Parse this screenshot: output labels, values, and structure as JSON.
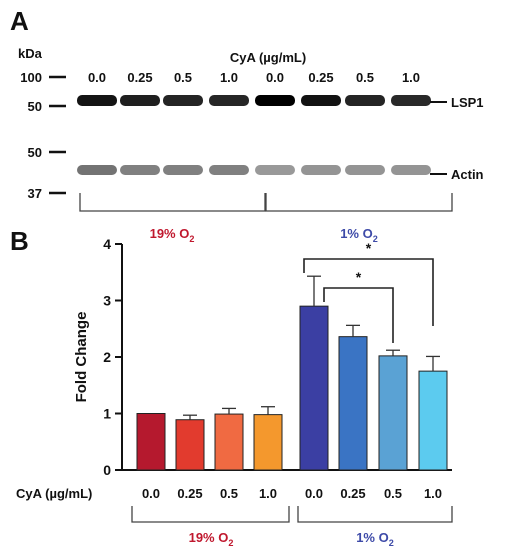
{
  "panel_a": {
    "label": "A",
    "kda_label": "kDa",
    "header": "CyA (µg/mL)",
    "doses": [
      "0.0",
      "0.25",
      "0.5",
      "1.0",
      "0.0",
      "0.25",
      "0.5",
      "1.0"
    ],
    "markers": [
      "100",
      "50",
      "50",
      "37"
    ],
    "band_labels": [
      "LSP1",
      "Actin"
    ],
    "group_labels": [
      {
        "text": "19% O",
        "sub": "2",
        "color": "#c0182e"
      },
      {
        "text": "1% O",
        "sub": "2",
        "color": "#3d4aa8"
      }
    ],
    "lsp1_intensity": [
      0.92,
      0.88,
      0.86,
      0.85,
      1.0,
      0.93,
      0.86,
      0.84
    ],
    "actin_intensity": [
      0.55,
      0.5,
      0.5,
      0.5,
      0.4,
      0.42,
      0.42,
      0.42
    ]
  },
  "panel_b": {
    "label": "B",
    "xaxis_prefix": "CyA (µg/mL)",
    "group_labels": [
      {
        "text": "19% O",
        "sub": "2",
        "color": "#c0182e"
      },
      {
        "text": "1% O",
        "sub": "2",
        "color": "#3d4aa8"
      }
    ],
    "significance": [
      "*",
      "*"
    ]
  },
  "chart_data": {
    "type": "bar",
    "categories": [
      "0.0",
      "0.25",
      "0.5",
      "1.0",
      "0.0",
      "0.25",
      "0.5",
      "1.0"
    ],
    "values": [
      1.0,
      0.89,
      0.99,
      0.98,
      2.9,
      2.36,
      2.02,
      1.75
    ],
    "errors": [
      0.0,
      0.08,
      0.1,
      0.14,
      0.53,
      0.2,
      0.1,
      0.26
    ],
    "colors": [
      "#b5192e",
      "#e23b2e",
      "#f06a42",
      "#f4982d",
      "#3b3fa3",
      "#3a74c4",
      "#5aa2d4",
      "#5ccbef"
    ],
    "ylabel": "Fold Change",
    "ylim": [
      0,
      4
    ],
    "yticks": [
      0,
      1,
      2,
      3,
      4
    ],
    "grid": false
  }
}
